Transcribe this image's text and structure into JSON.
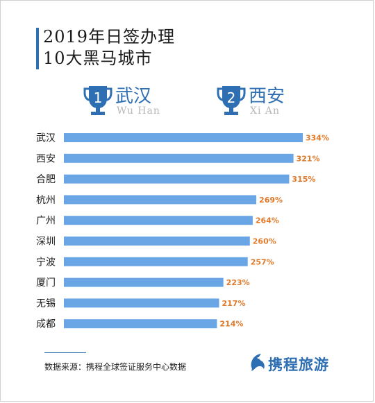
{
  "title": {
    "line1": "2019年日签办理",
    "line2": "10大黑马城市"
  },
  "ranks": [
    {
      "num": "1",
      "cn": "武汉",
      "en": "Wu Han"
    },
    {
      "num": "2",
      "cn": "西安",
      "en": "Xi An"
    }
  ],
  "chart_data": {
    "type": "bar",
    "orientation": "horizontal",
    "categories": [
      "武汉",
      "西安",
      "合肥",
      "杭州",
      "广州",
      "深圳",
      "宁波",
      "厦门",
      "无锡",
      "成都"
    ],
    "values": [
      334,
      321,
      315,
      269,
      264,
      260,
      257,
      223,
      217,
      214
    ],
    "value_labels": [
      "334%",
      "321%",
      "315%",
      "269%",
      "264%",
      "260%",
      "257%",
      "223%",
      "217%",
      "214%"
    ],
    "unit": "%",
    "title": "",
    "xlabel": "",
    "ylabel": "",
    "grid": false,
    "bar_color": "#6aa6e6",
    "label_color": "#e07a2a"
  },
  "footer": {
    "source": "数据来源：携程全球签证服务中心数据",
    "brand": "携程旅游"
  },
  "colors": {
    "accent": "#2e6fb3",
    "bar": "#6aa6e6",
    "value_label": "#e07a2a"
  }
}
